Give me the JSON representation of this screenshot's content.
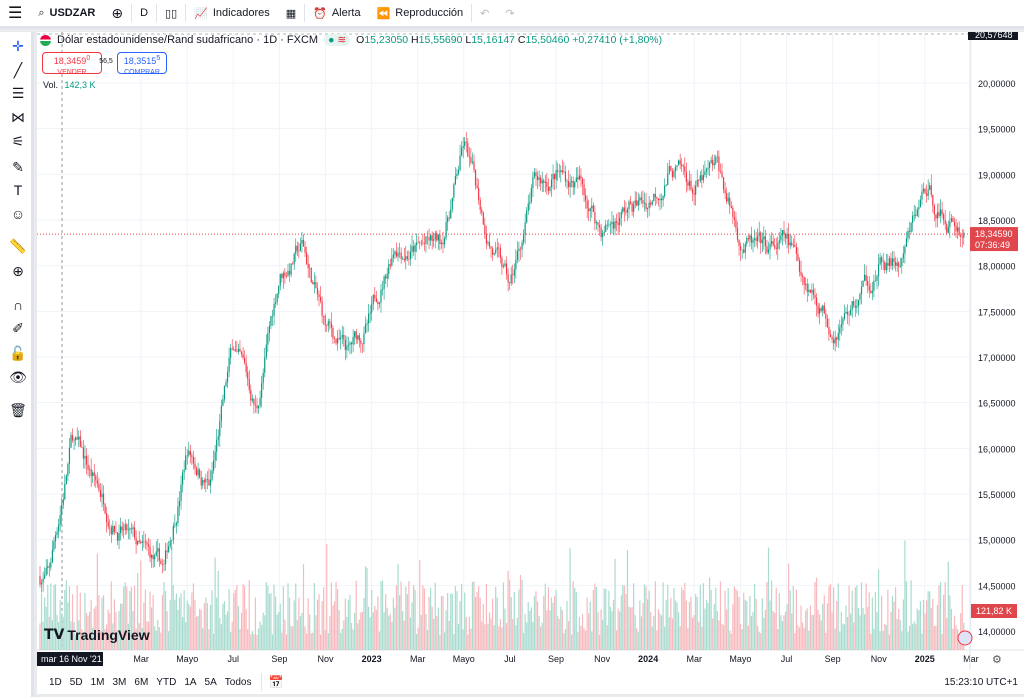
{
  "toolbar": {
    "symbol": "USDZAR",
    "interval": "D",
    "indicators": "Indicadores",
    "alert": "Alerta",
    "replay": "Reproducción"
  },
  "legend": {
    "title": "Dólar estadounidense/Rand sudafricano · 1D · FXCM",
    "o_label": "O",
    "o": "15,23050",
    "h_label": "H",
    "h": "15,55690",
    "l_label": "L",
    "l": "15,16147",
    "c_label": "C",
    "c": "15,50460",
    "change": "+0,27410 (+1,80%)"
  },
  "trade": {
    "sell_price": "18,3459",
    "sell_sup": "0",
    "sell_label": "VENDER",
    "spread": "56,5",
    "buy_price": "18,3515",
    "buy_sup": "5",
    "buy_label": "COMPRAR"
  },
  "volume": {
    "label": "Vol.",
    "value": "142,3 K",
    "last": "121,82 K"
  },
  "price_axis": {
    "labels": [
      "20,00000",
      "19,50000",
      "19,00000",
      "18,50000",
      "18,00000",
      "17,50000",
      "17,00000",
      "16,50000",
      "16,00000",
      "15,50000",
      "15,00000",
      "14,50000",
      "14,00000"
    ],
    "top_label": "20,57648",
    "last_price": "18,34590",
    "countdown": "07:36:49"
  },
  "time_axis": {
    "labels": [
      "Mar",
      "Mayo",
      "Jul",
      "Sep",
      "Nov",
      "2023",
      "Mar",
      "Mayo",
      "Jul",
      "Sep",
      "Nov",
      "2024",
      "Mar",
      "Mayo",
      "Jul",
      "Sep",
      "Nov",
      "2025",
      "Mar"
    ],
    "crosshair": "mar 16 Nov '21"
  },
  "ranges": [
    "1D",
    "5D",
    "1M",
    "3M",
    "6M",
    "YTD",
    "1A",
    "5A",
    "Todos"
  ],
  "clock": "15:23:10 UTC+1",
  "watermark": "TradingView",
  "colors": {
    "up": "#089981",
    "down": "#f23645",
    "last": "#e0474d"
  },
  "chart_data": {
    "type": "candlestick",
    "symbol": "USDZAR",
    "ylim": [
      14.0,
      20.0
    ],
    "approx_monthly_close": [
      [
        "2021-11",
        14.6
      ],
      [
        "2021-12",
        16.1
      ],
      [
        "2022-01",
        15.6
      ],
      [
        "2022-02",
        15.2
      ],
      [
        "2022-03",
        14.8
      ],
      [
        "2022-04",
        14.6
      ],
      [
        "2022-05",
        16.0
      ],
      [
        "2022-06",
        15.6
      ],
      [
        "2022-07",
        17.1
      ],
      [
        "2022-08",
        16.4
      ],
      [
        "2022-09",
        17.9
      ],
      [
        "2022-10",
        18.2
      ],
      [
        "2022-11",
        17.3
      ],
      [
        "2022-12",
        17.0
      ],
      [
        "2023-01",
        17.4
      ],
      [
        "2023-02",
        18.3
      ],
      [
        "2023-03",
        18.2
      ],
      [
        "2023-04",
        18.2
      ],
      [
        "2023-05",
        19.3
      ],
      [
        "2023-06",
        18.4
      ],
      [
        "2023-07",
        17.7
      ],
      [
        "2023-08",
        18.8
      ],
      [
        "2023-09",
        19.0
      ],
      [
        "2023-10",
        18.9
      ],
      [
        "2023-11",
        18.4
      ],
      [
        "2023-12",
        18.6
      ],
      [
        "2024-01",
        18.7
      ],
      [
        "2024-02",
        19.1
      ],
      [
        "2024-03",
        18.8
      ],
      [
        "2024-04",
        19.0
      ],
      [
        "2024-05",
        18.3
      ],
      [
        "2024-06",
        18.1
      ],
      [
        "2024-07",
        18.2
      ],
      [
        "2024-08",
        17.8
      ],
      [
        "2024-09",
        17.4
      ],
      [
        "2024-10",
        17.6
      ],
      [
        "2024-11",
        18.0
      ],
      [
        "2024-12",
        18.0
      ],
      [
        "2025-01",
        18.8
      ],
      [
        "2025-02",
        18.5
      ],
      [
        "2025-03",
        18.35
      ]
    ]
  }
}
